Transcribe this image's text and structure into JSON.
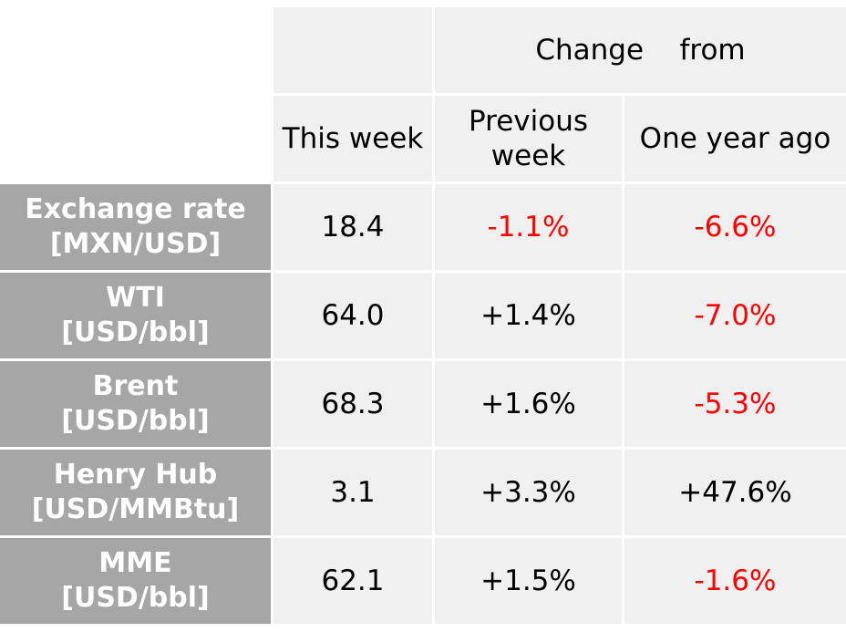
{
  "header": {
    "change_from": "Change    from",
    "this_week": "This week",
    "previous_week_line1": "Previous",
    "previous_week_line2": "week",
    "one_year_ago": "One year ago"
  },
  "rows": [
    {
      "name_line1": "Exchange rate",
      "name_line2": "[MXN/USD]",
      "this_week": "18.4",
      "prev_week": "-1.1%",
      "year_ago": "-6.6%"
    },
    {
      "name_line1": "WTI",
      "name_line2": "[USD/bbl]",
      "this_week": "64.0",
      "prev_week": "+1.4%",
      "year_ago": "-7.0%"
    },
    {
      "name_line1": "Brent",
      "name_line2": "[USD/bbl]",
      "this_week": "68.3",
      "prev_week": "+1.6%",
      "year_ago": "-5.3%"
    },
    {
      "name_line1": "Henry Hub",
      "name_line2": "[USD/MMBtu]",
      "this_week": "3.1",
      "prev_week": "+3.3%",
      "year_ago": "+47.6%"
    },
    {
      "name_line1": "MME",
      "name_line2": "[USD/bbl]",
      "this_week": "62.1",
      "prev_week": "+1.5%",
      "year_ago": "-1.6%"
    }
  ],
  "colors": {
    "negative": "#ff0000",
    "positive": "#000000",
    "header_fill": "#a6a6a6",
    "cell_fill": "#f0f0f0"
  }
}
